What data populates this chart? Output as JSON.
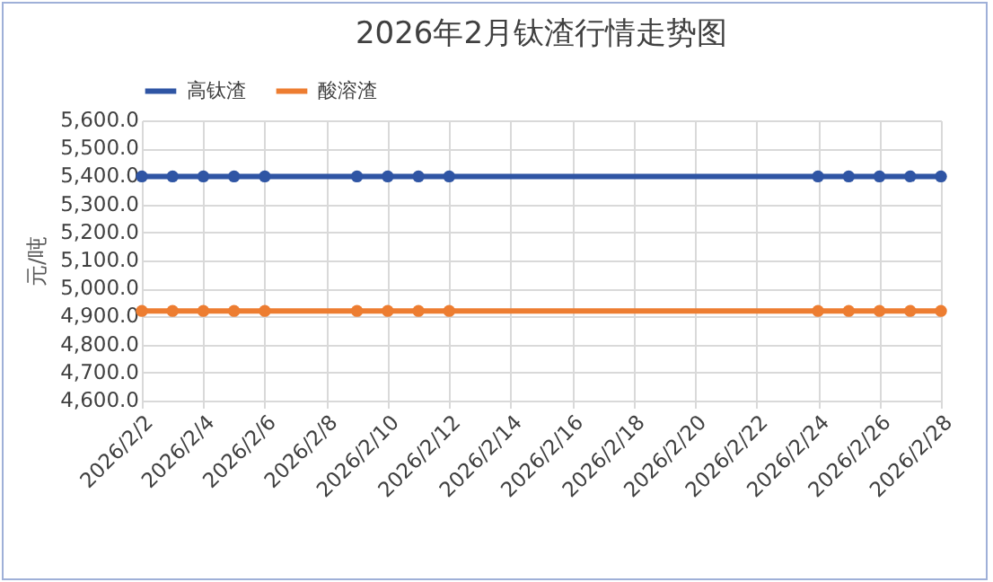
{
  "chart_data": {
    "type": "line",
    "title": "2026年2月钛渣行情走势图",
    "ylabel": "元/吨",
    "x": [
      "2026-02-02",
      "2026-02-03",
      "2026-02-04",
      "2026-02-05",
      "2026-02-06",
      "2026-02-09",
      "2026-02-10",
      "2026-02-11",
      "2026-02-12",
      "2026-02-24",
      "2026-02-25",
      "2026-02-26",
      "2026-02-27",
      "2026-02-28"
    ],
    "series": [
      {
        "name": "高钛渣",
        "color": "#2f55a4",
        "values": [
          5400,
          5400,
          5400,
          5400,
          5400,
          5400,
          5400,
          5400,
          5400,
          5400,
          5400,
          5400,
          5400,
          5400
        ]
      },
      {
        "name": "酸溶渣",
        "color": "#ed7d31",
        "values": [
          4920,
          4920,
          4920,
          4920,
          4920,
          4920,
          4920,
          4920,
          4920,
          4920,
          4920,
          4920,
          4920,
          4920
        ]
      }
    ],
    "xlim": [
      "2026-02-02",
      "2026-02-28"
    ],
    "xticks": [
      {
        "value": "2026-02-02",
        "label": "2026/2/2"
      },
      {
        "value": "2026-02-04",
        "label": "2026/2/4"
      },
      {
        "value": "2026-02-06",
        "label": "2026/2/6"
      },
      {
        "value": "2026-02-08",
        "label": "2026/2/8"
      },
      {
        "value": "2026-02-10",
        "label": "2026/2/10"
      },
      {
        "value": "2026-02-12",
        "label": "2026/2/12"
      },
      {
        "value": "2026-02-14",
        "label": "2026/2/14"
      },
      {
        "value": "2026-02-16",
        "label": "2026/2/16"
      },
      {
        "value": "2026-02-18",
        "label": "2026/2/18"
      },
      {
        "value": "2026-02-20",
        "label": "2026/2/20"
      },
      {
        "value": "2026-02-22",
        "label": "2026/2/22"
      },
      {
        "value": "2026-02-24",
        "label": "2026/2/24"
      },
      {
        "value": "2026-02-26",
        "label": "2026/2/26"
      },
      {
        "value": "2026-02-28",
        "label": "2026/2/28"
      }
    ],
    "ylim": [
      4600,
      5600
    ],
    "yticks": [
      {
        "value": 4600,
        "label": "4,600.0"
      },
      {
        "value": 4700,
        "label": "4,700.0"
      },
      {
        "value": 4800,
        "label": "4,800.0"
      },
      {
        "value": 4900,
        "label": "4,900.0"
      },
      {
        "value": 5000,
        "label": "5,000.0"
      },
      {
        "value": 5100,
        "label": "5,100.0"
      },
      {
        "value": 5200,
        "label": "5,200.0"
      },
      {
        "value": 5300,
        "label": "5,300.0"
      },
      {
        "value": 5400,
        "label": "5,400.0"
      },
      {
        "value": 5500,
        "label": "5,500.0"
      },
      {
        "value": 5600,
        "label": "5,600.0"
      }
    ],
    "grid": true,
    "legend": "top",
    "marker": "circle",
    "line_style": "solid"
  }
}
